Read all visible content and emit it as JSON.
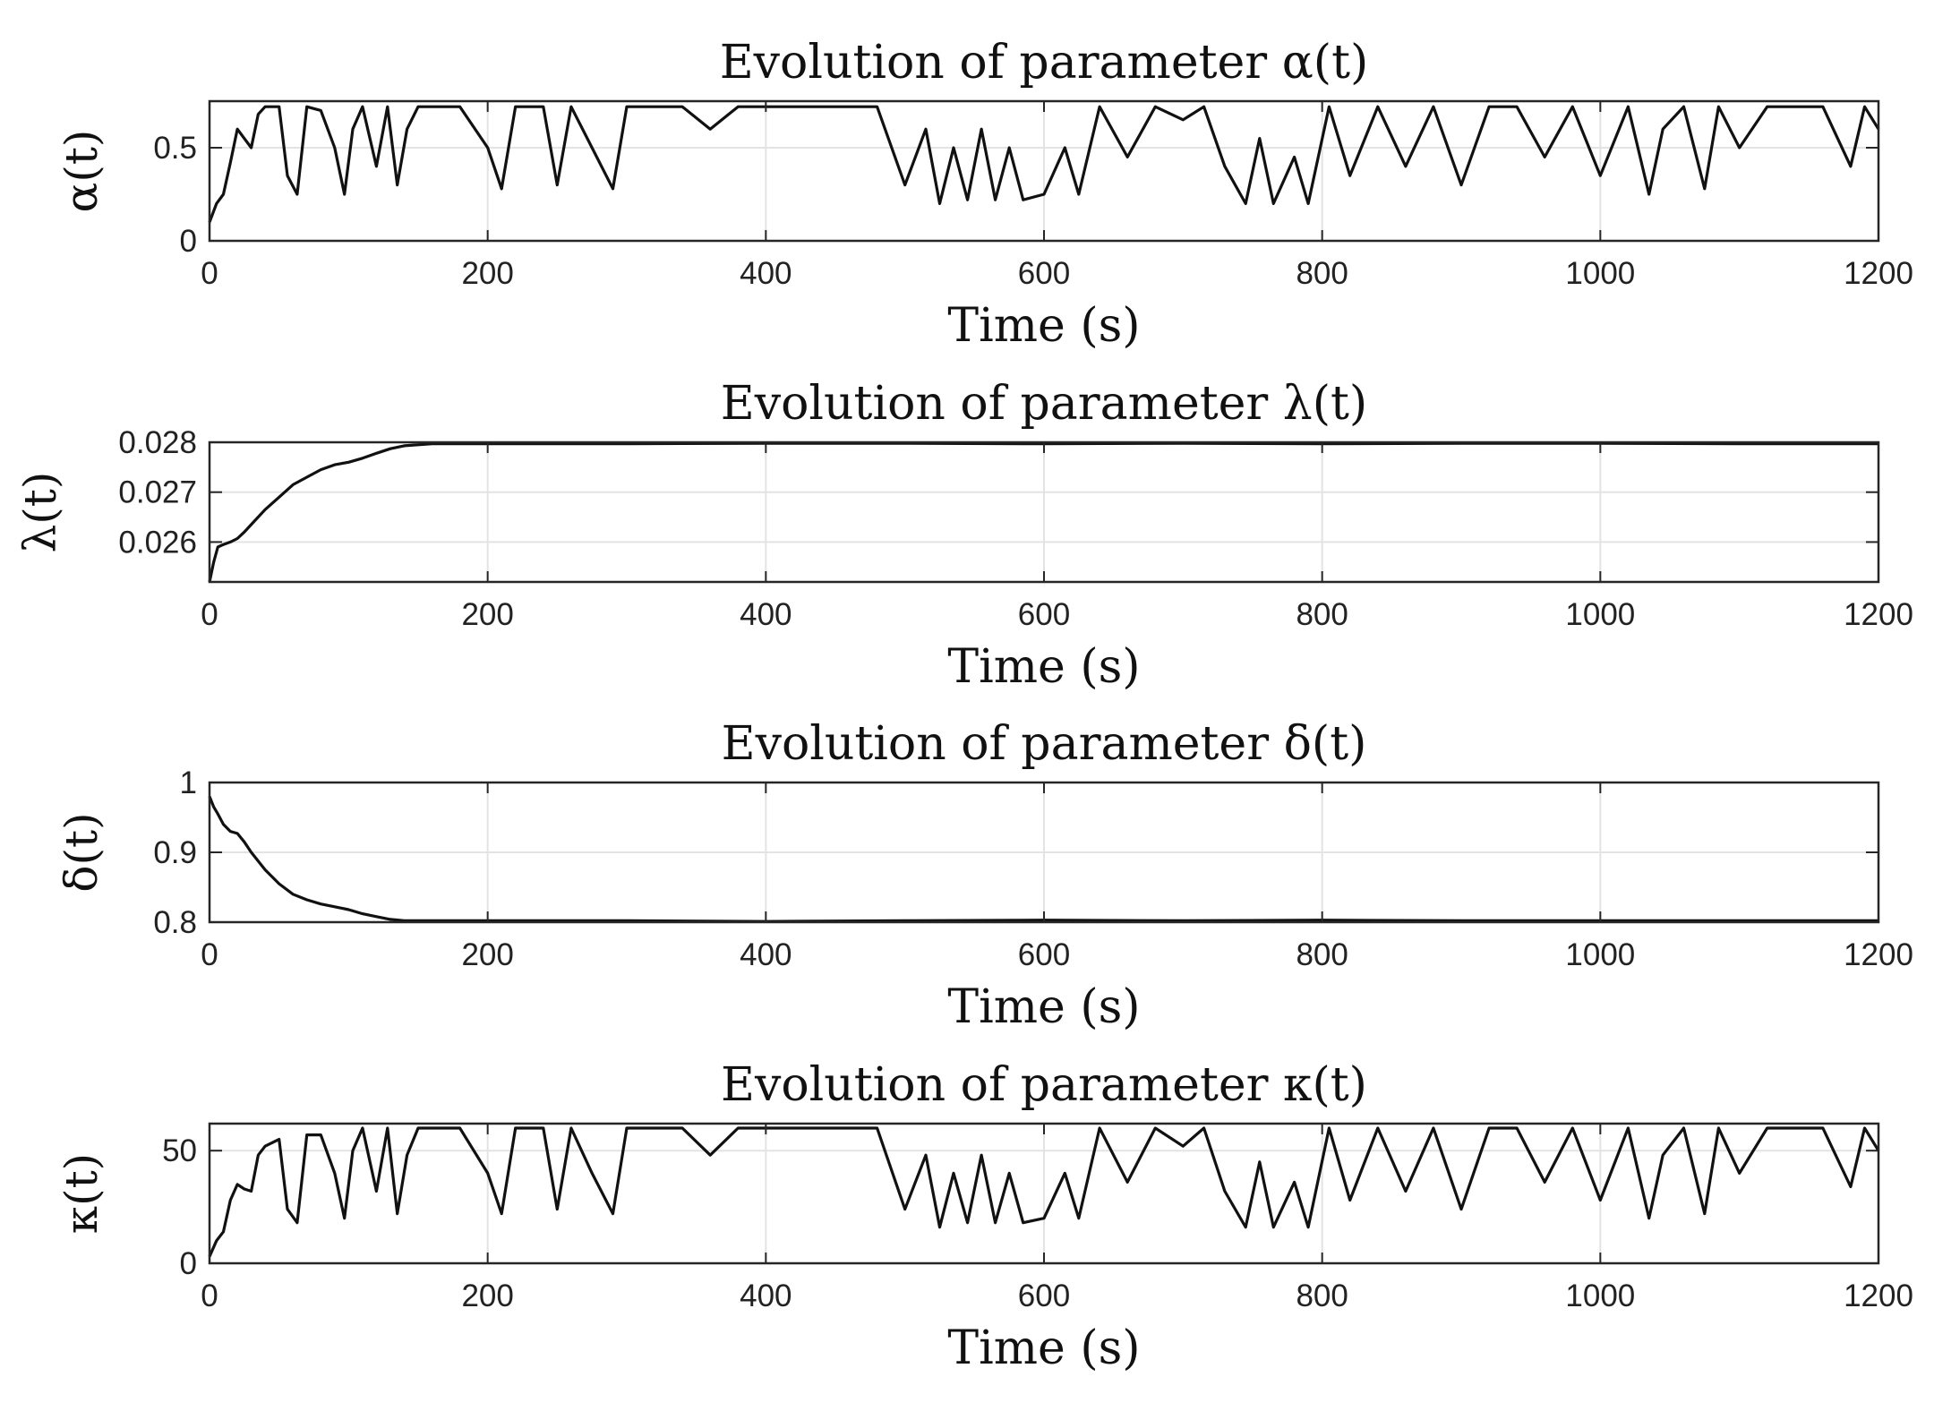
{
  "chart_data": [
    {
      "type": "line",
      "title": "Evolution of parameter α(t)",
      "xlabel": "Time (s)",
      "ylabel": "α(t)",
      "xlim": [
        0,
        1200
      ],
      "ylim": [
        0,
        0.75
      ],
      "xticks": [
        0,
        200,
        400,
        600,
        800,
        1000,
        1200
      ],
      "xtick_labels": [
        "0",
        "200",
        "400",
        "600",
        "800",
        "1000",
        "1200"
      ],
      "yticks": [
        0,
        0.5
      ],
      "ytick_labels": [
        "0",
        "0.5"
      ],
      "grid": true,
      "line_color": "#111111",
      "series": [
        {
          "name": "α(t)",
          "x": [
            0,
            5,
            10,
            15,
            20,
            25,
            30,
            35,
            40,
            50,
            56,
            63,
            70,
            80,
            90,
            97,
            103,
            110,
            120,
            128,
            135,
            142,
            150,
            160,
            170,
            180,
            200,
            210,
            220,
            240,
            250,
            260,
            275,
            290,
            300,
            320,
            340,
            360,
            380,
            400,
            430,
            460,
            480,
            500,
            515,
            525,
            535,
            545,
            555,
            565,
            575,
            585,
            600,
            615,
            625,
            640,
            660,
            680,
            700,
            715,
            730,
            745,
            755,
            765,
            780,
            790,
            805,
            820,
            840,
            860,
            880,
            900,
            920,
            940,
            960,
            980,
            1000,
            1020,
            1035,
            1045,
            1060,
            1075,
            1085,
            1100,
            1120,
            1140,
            1160,
            1180,
            1190,
            1200
          ],
          "y": [
            0.1,
            0.2,
            0.25,
            0.42,
            0.6,
            0.55,
            0.5,
            0.68,
            0.72,
            0.72,
            0.35,
            0.25,
            0.72,
            0.7,
            0.5,
            0.25,
            0.6,
            0.72,
            0.4,
            0.72,
            0.3,
            0.6,
            0.72,
            0.72,
            0.72,
            0.72,
            0.5,
            0.28,
            0.72,
            0.72,
            0.3,
            0.72,
            0.5,
            0.28,
            0.72,
            0.72,
            0.72,
            0.6,
            0.72,
            0.72,
            0.72,
            0.72,
            0.72,
            0.3,
            0.6,
            0.2,
            0.5,
            0.22,
            0.6,
            0.22,
            0.5,
            0.22,
            0.25,
            0.5,
            0.25,
            0.72,
            0.45,
            0.72,
            0.65,
            0.72,
            0.4,
            0.2,
            0.55,
            0.2,
            0.45,
            0.2,
            0.72,
            0.35,
            0.72,
            0.4,
            0.72,
            0.3,
            0.72,
            0.72,
            0.45,
            0.72,
            0.35,
            0.72,
            0.25,
            0.6,
            0.72,
            0.28,
            0.72,
            0.5,
            0.72,
            0.72,
            0.72,
            0.4,
            0.72,
            0.6
          ]
        }
      ]
    },
    {
      "type": "line",
      "title": "Evolution of parameter λ(t)",
      "xlabel": "Time (s)",
      "ylabel": "λ(t)",
      "xlim": [
        0,
        1200
      ],
      "ylim": [
        0.0252,
        0.028
      ],
      "xticks": [
        0,
        200,
        400,
        600,
        800,
        1000,
        1200
      ],
      "xtick_labels": [
        "0",
        "200",
        "400",
        "600",
        "800",
        "1000",
        "1200"
      ],
      "yticks": [
        0.026,
        0.027,
        0.028
      ],
      "ytick_labels": [
        "0.026",
        "0.027",
        "0.028"
      ],
      "grid": true,
      "line_color": "#111111",
      "series": [
        {
          "name": "λ(t)",
          "x": [
            0,
            3,
            6,
            10,
            15,
            20,
            25,
            30,
            40,
            50,
            60,
            70,
            80,
            90,
            100,
            110,
            120,
            130,
            140,
            160,
            200,
            300,
            400,
            500,
            600,
            700,
            800,
            900,
            1000,
            1100,
            1200
          ],
          "y": [
            0.0252,
            0.0256,
            0.0259,
            0.02595,
            0.026,
            0.02607,
            0.0262,
            0.02635,
            0.02665,
            0.0269,
            0.02715,
            0.0273,
            0.02745,
            0.02755,
            0.0276,
            0.02768,
            0.02778,
            0.02787,
            0.02793,
            0.02797,
            0.02797,
            0.02797,
            0.02798,
            0.02798,
            0.02797,
            0.02798,
            0.02797,
            0.02798,
            0.02798,
            0.02797,
            0.02797
          ]
        }
      ]
    },
    {
      "type": "line",
      "title": "Evolution of parameter δ(t)",
      "xlabel": "Time (s)",
      "ylabel": "δ(t)",
      "xlim": [
        0,
        1200
      ],
      "ylim": [
        0.8,
        1.0
      ],
      "xticks": [
        0,
        200,
        400,
        600,
        800,
        1000,
        1200
      ],
      "xtick_labels": [
        "0",
        "200",
        "400",
        "600",
        "800",
        "1000",
        "1200"
      ],
      "yticks": [
        0.8,
        0.9,
        1.0
      ],
      "ytick_labels": [
        "0.8",
        "0.9",
        "1"
      ],
      "grid": true,
      "line_color": "#111111",
      "series": [
        {
          "name": "δ(t)",
          "x": [
            0,
            3,
            6,
            10,
            15,
            20,
            25,
            30,
            40,
            50,
            60,
            70,
            80,
            90,
            100,
            110,
            120,
            130,
            140,
            160,
            200,
            300,
            400,
            500,
            600,
            700,
            800,
            900,
            1000,
            1100,
            1200
          ],
          "y": [
            0.98,
            0.965,
            0.955,
            0.94,
            0.93,
            0.927,
            0.915,
            0.9,
            0.875,
            0.855,
            0.84,
            0.832,
            0.826,
            0.822,
            0.818,
            0.812,
            0.808,
            0.804,
            0.802,
            0.802,
            0.802,
            0.802,
            0.801,
            0.802,
            0.803,
            0.802,
            0.803,
            0.802,
            0.802,
            0.802,
            0.802
          ]
        }
      ]
    },
    {
      "type": "line",
      "title": "Evolution of parameter κ(t)",
      "xlabel": "Time (s)",
      "ylabel": "κ(t)",
      "xlim": [
        0,
        1200
      ],
      "ylim": [
        0,
        62
      ],
      "xticks": [
        0,
        200,
        400,
        600,
        800,
        1000,
        1200
      ],
      "xtick_labels": [
        "0",
        "200",
        "400",
        "600",
        "800",
        "1000",
        "1200"
      ],
      "yticks": [
        0,
        50
      ],
      "ytick_labels": [
        "0",
        "50"
      ],
      "grid": true,
      "line_color": "#111111",
      "series": [
        {
          "name": "κ(t)",
          "x": [
            0,
            5,
            10,
            15,
            20,
            25,
            30,
            35,
            40,
            50,
            56,
            63,
            70,
            80,
            90,
            97,
            103,
            110,
            120,
            128,
            135,
            142,
            150,
            160,
            170,
            180,
            200,
            210,
            220,
            240,
            250,
            260,
            275,
            290,
            300,
            320,
            340,
            360,
            380,
            400,
            430,
            460,
            480,
            500,
            515,
            525,
            535,
            545,
            555,
            565,
            575,
            585,
            600,
            615,
            625,
            640,
            660,
            680,
            700,
            715,
            730,
            745,
            755,
            765,
            780,
            790,
            805,
            820,
            840,
            860,
            880,
            900,
            920,
            940,
            960,
            980,
            1000,
            1020,
            1035,
            1045,
            1060,
            1075,
            1085,
            1100,
            1120,
            1140,
            1160,
            1180,
            1190,
            1200
          ],
          "y": [
            3,
            10,
            14,
            28,
            35,
            33,
            32,
            48,
            52,
            55,
            24,
            18,
            57,
            57,
            40,
            20,
            50,
            60,
            32,
            60,
            22,
            48,
            60,
            60,
            60,
            60,
            40,
            22,
            60,
            60,
            24,
            60,
            40,
            22,
            60,
            60,
            60,
            48,
            60,
            60,
            60,
            60,
            60,
            24,
            48,
            16,
            40,
            18,
            48,
            18,
            40,
            18,
            20,
            40,
            20,
            60,
            36,
            60,
            52,
            60,
            32,
            16,
            45,
            16,
            36,
            16,
            60,
            28,
            60,
            32,
            60,
            24,
            60,
            60,
            36,
            60,
            28,
            60,
            20,
            48,
            60,
            22,
            60,
            40,
            60,
            60,
            60,
            34,
            60,
            50
          ]
        }
      ]
    }
  ]
}
